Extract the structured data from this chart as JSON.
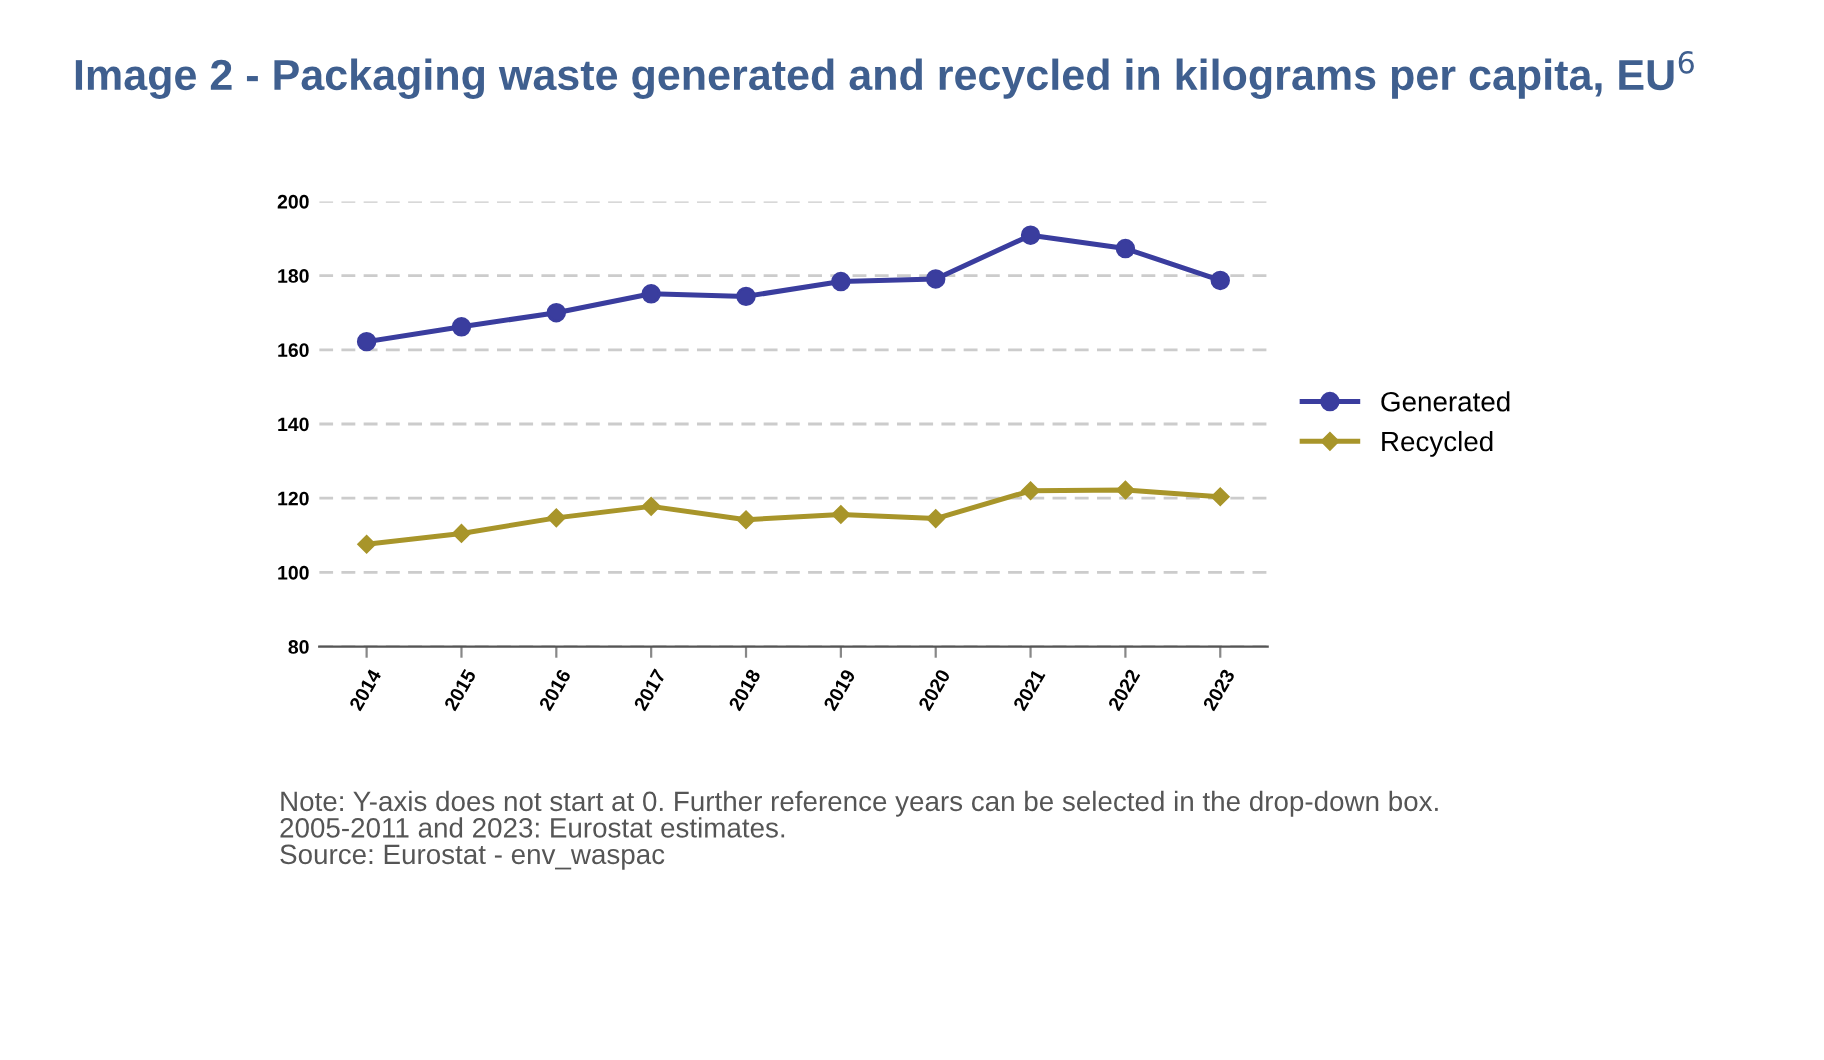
{
  "chart_data": {
    "type": "line",
    "title": "Image 2 - Packaging waste generated and recycled in kilograms per capita, EU$^{6}$",
    "categories": [
      "2014",
      "2015",
      "2016",
      "2017",
      "2018",
      "2019",
      "2020",
      "2021",
      "2022",
      "2023"
    ],
    "series": [
      {
        "name": "Generated",
        "color": "#3a3d9e",
        "marker": "circle",
        "values": [
          162.2,
          166.2,
          170.0,
          175.1,
          174.4,
          178.4,
          179.1,
          190.9,
          187.3,
          178.7
        ]
      },
      {
        "name": "Recycled",
        "color": "#a8952a",
        "marker": "diamond",
        "values": [
          107.6,
          110.5,
          114.7,
          117.8,
          114.2,
          115.6,
          114.5,
          122.0,
          122.2,
          120.4
        ]
      }
    ],
    "ylim": [
      80,
      200
    ],
    "yticks": [
      80,
      100,
      120,
      140,
      160,
      180,
      200
    ],
    "grid": "y",
    "legend": "right",
    "line_style": "solid",
    "annotations": [
      "Note: Y-axis does not start at 0. Further reference years can be selected in the drop-down box.",
      "2005-2011 and 2023: Eurostat estimates.",
      "Source: Eurostat - env_waspac"
    ]
  }
}
